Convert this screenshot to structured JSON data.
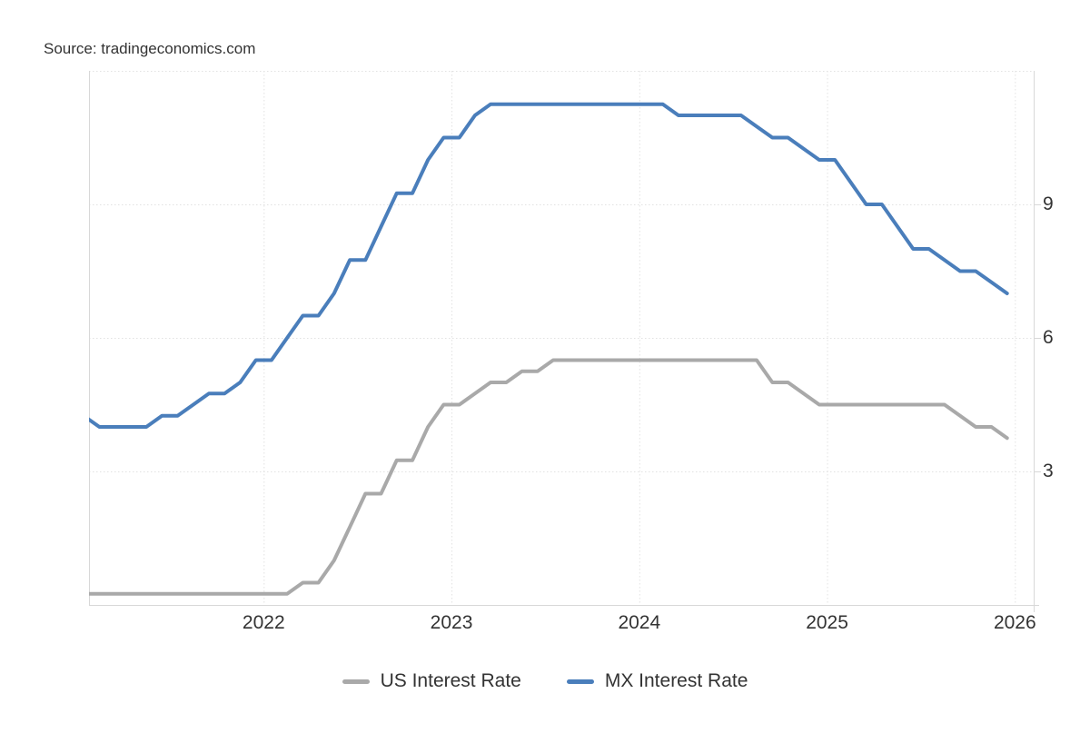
{
  "source": "Source: tradingeconomics.com",
  "chart_data": {
    "type": "line",
    "title": "",
    "xlabel": "",
    "ylabel": "",
    "grid": "dotted",
    "legend_position": "bottom",
    "ylim": [
      0,
      12
    ],
    "xlim": [
      2021.07,
      2026.1
    ],
    "y_ticks": [
      9,
      6,
      3
    ],
    "y_tick_labels": [
      "9",
      "6",
      "3"
    ],
    "y_gridlines": [
      12,
      9,
      6,
      3
    ],
    "x_tick_years": [
      2022,
      2023,
      2024,
      2025,
      2026
    ],
    "x_tick_labels": [
      "2022",
      "2023",
      "2024",
      "2025",
      "2026"
    ],
    "x_start_month": "2021-01",
    "x_interval": "month",
    "series": [
      {
        "id": "us-interest-rate-line",
        "name": "US Interest Rate",
        "color": "#a9a9a9",
        "values": [
          0.25,
          0.25,
          0.25,
          0.25,
          0.25,
          0.25,
          0.25,
          0.25,
          0.25,
          0.25,
          0.25,
          0.25,
          0.25,
          0.25,
          0.5,
          0.5,
          1.0,
          1.75,
          2.5,
          2.5,
          3.25,
          3.25,
          4.0,
          4.5,
          4.5,
          4.75,
          5.0,
          5.0,
          5.25,
          5.25,
          5.5,
          5.5,
          5.5,
          5.5,
          5.5,
          5.5,
          5.5,
          5.5,
          5.5,
          5.5,
          5.5,
          5.5,
          5.5,
          5.5,
          5.0,
          5.0,
          4.75,
          4.5,
          4.5,
          4.5,
          4.5,
          4.5,
          4.5,
          4.5,
          4.5,
          4.5,
          4.25,
          4.0,
          4.0,
          3.75
        ]
      },
      {
        "id": "mx-interest-rate-line",
        "name": "MX Interest Rate",
        "color": "#4a7ebb",
        "values": [
          4.25,
          4.0,
          4.0,
          4.0,
          4.0,
          4.25,
          4.25,
          4.5,
          4.75,
          4.75,
          5.0,
          5.5,
          5.5,
          6.0,
          6.5,
          6.5,
          7.0,
          7.75,
          7.75,
          8.5,
          9.25,
          9.25,
          10.0,
          10.5,
          10.5,
          11.0,
          11.25,
          11.25,
          11.25,
          11.25,
          11.25,
          11.25,
          11.25,
          11.25,
          11.25,
          11.25,
          11.25,
          11.25,
          11.0,
          11.0,
          11.0,
          11.0,
          11.0,
          10.75,
          10.5,
          10.5,
          10.25,
          10.0,
          10.0,
          9.5,
          9.0,
          9.0,
          8.5,
          8.0,
          8.0,
          7.75,
          7.5,
          7.5,
          7.25,
          7.0
        ]
      }
    ]
  },
  "legend": {
    "items": [
      {
        "label": "US Interest Rate",
        "color": "#a9a9a9"
      },
      {
        "label": "MX Interest Rate",
        "color": "#4a7ebb"
      }
    ]
  },
  "style": {
    "gridline_color": "#e2e2e2",
    "axis_color": "#d8d8d8",
    "text_color": "#333333"
  }
}
